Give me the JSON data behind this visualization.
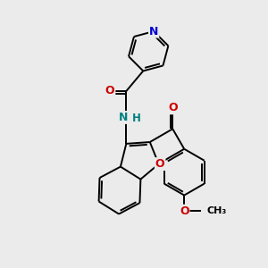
{
  "bg_color": "#ebebeb",
  "bond_color": "#000000",
  "nitrogen_color": "#0000cc",
  "oxygen_color": "#cc0000",
  "amide_n_color": "#008080",
  "bond_width": 1.4,
  "figsize": [
    3.0,
    3.0
  ],
  "dpi": 100,
  "xlim": [
    0,
    10
  ],
  "ylim": [
    0,
    10
  ]
}
